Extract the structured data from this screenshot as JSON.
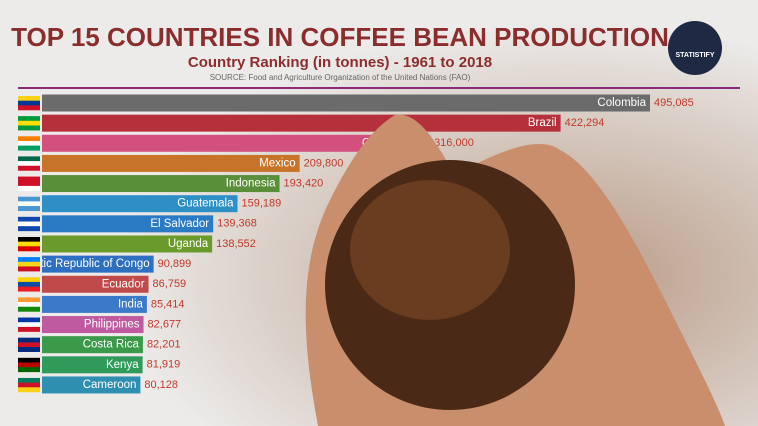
{
  "chart_data": {
    "type": "bar",
    "orientation": "horizontal",
    "title": "TOP 15 COUNTRIES IN COFFEE BEAN PRODUCTION",
    "subtitle": "Country Ranking (in tonnes) - 1961 to 2018",
    "source": "SOURCE: Food and Agriculture Organization of the United Nations (FAO)",
    "logo": "STATISTIFY",
    "categories": [
      "Colombia",
      "Brazil",
      "Cote d'Ivoire",
      "Mexico",
      "Indonesia",
      "Guatemala",
      "El Salvador",
      "Uganda",
      "Democratic Republic of Congo",
      "Ecuador",
      "India",
      "Philippines",
      "Costa Rica",
      "Kenya",
      "Cameroon"
    ],
    "values": [
      495085,
      422294,
      316000,
      209800,
      193420,
      159189,
      139368,
      138552,
      90899,
      86759,
      85414,
      82677,
      82201,
      81919,
      80128
    ],
    "value_labels": [
      "495,085",
      "422,294",
      "316,000",
      "209,800",
      "193,420",
      "159,189",
      "139,368",
      "138,552",
      "90,899",
      "86,759",
      "85,414",
      "82,677",
      "82,201",
      "81,919",
      "80,128"
    ],
    "colors": [
      "#6b6b6b",
      "#b5303a",
      "#d24f7e",
      "#c8732a",
      "#5a8f3a",
      "#2e8fc6",
      "#2a7ac4",
      "#6a9a2a",
      "#2e6fc0",
      "#c04a4a",
      "#3a7ac8",
      "#c05aa0",
      "#3a9a4a",
      "#2f9a5a",
      "#2e8fb0"
    ]
  }
}
